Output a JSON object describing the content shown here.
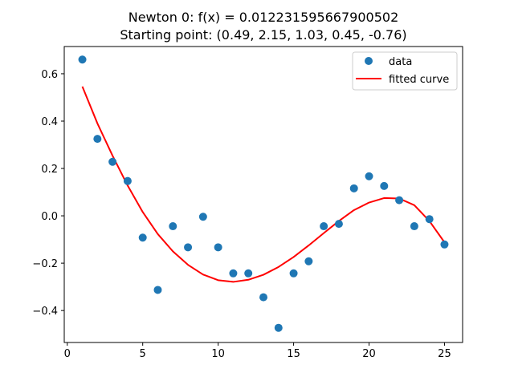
{
  "chart_data": {
    "type": "scatter",
    "title_line1": "Newton 0: f(x) = 0.012231595667900502",
    "title_line2": "Starting point: (0.49, 2.15, 1.03, 0.45, -0.76)",
    "xlim": [
      -0.2,
      26.2
    ],
    "ylim": [
      -0.535,
      0.715
    ],
    "x_ticks": [
      0,
      5,
      10,
      15,
      20,
      25
    ],
    "y_ticks": [
      -0.4,
      -0.2,
      0.0,
      0.2,
      0.4,
      0.6
    ],
    "x_tick_labels": [
      "0",
      "5",
      "10",
      "15",
      "20",
      "25"
    ],
    "y_tick_labels": [
      "−0.4",
      "−0.2",
      "0.0",
      "0.2",
      "0.4",
      "0.6"
    ],
    "grid": false,
    "legend_position": "top-right",
    "legend": {
      "data_label": "data",
      "curve_label": "fitted curve"
    },
    "series": [
      {
        "name": "data",
        "kind": "scatter",
        "color": "#1f77b4",
        "x": [
          1,
          2,
          3,
          4,
          5,
          6,
          7,
          8,
          9,
          10,
          11,
          12,
          13,
          14,
          15,
          16,
          17,
          18,
          19,
          20,
          21,
          22,
          23,
          24,
          25
        ],
        "y": [
          0.66,
          0.325,
          0.228,
          0.147,
          -0.092,
          -0.313,
          -0.044,
          -0.133,
          -0.004,
          -0.133,
          -0.243,
          -0.243,
          -0.344,
          -0.473,
          -0.243,
          -0.192,
          -0.044,
          -0.034,
          0.116,
          0.167,
          0.126,
          0.066,
          -0.044,
          -0.014,
          -0.121
        ]
      },
      {
        "name": "fitted curve",
        "kind": "line",
        "color": "#ff0000",
        "x": [
          1,
          2,
          3,
          4,
          5,
          6,
          7,
          8,
          9,
          10,
          11,
          12,
          13,
          14,
          15,
          16,
          17,
          18,
          19,
          20,
          21,
          22,
          23,
          24,
          25
        ],
        "y": [
          0.546,
          0.39,
          0.254,
          0.128,
          0.016,
          -0.077,
          -0.15,
          -0.207,
          -0.248,
          -0.272,
          -0.279,
          -0.27,
          -0.249,
          -0.216,
          -0.174,
          -0.125,
          -0.073,
          -0.022,
          0.024,
          0.056,
          0.075,
          0.073,
          0.045,
          -0.022,
          -0.112
        ]
      }
    ]
  }
}
